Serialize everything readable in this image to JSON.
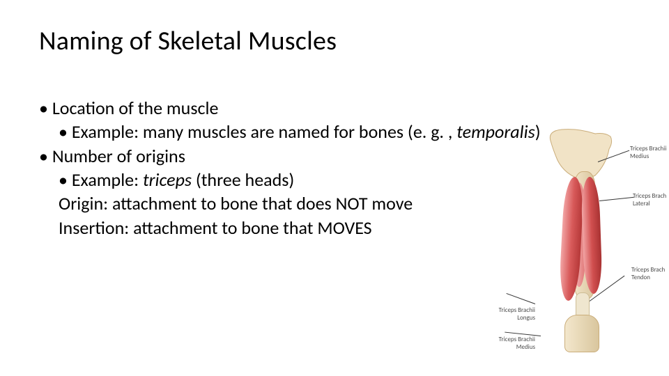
{
  "title": "Naming of Skeletal Muscles",
  "bullets": {
    "b1": "Location of the muscle",
    "b1a_pre": "Example: many muscles are named for bones (e. g. , ",
    "b1a_italic": "temporalis",
    "b1a_post": ")",
    "b2": "Number of origins",
    "b2a_pre": "Example: ",
    "b2a_italic": "triceps",
    "b2a_post": " (three heads)",
    "b2b": "Origin: attachment to bone that does NOT move",
    "b2c": "Insertion: attachment to bone that MOVES"
  },
  "diagram": {
    "labels": {
      "medius_top": "Triceps Brachii\nMedius",
      "lateral": "Triceps Brach\nLateral",
      "tendon": "Triceps Brach\nTendon",
      "longus": "Triceps Brachii\nLongus",
      "medius_bot": "Triceps Brachii\nMedius"
    },
    "colors": {
      "bone_fill": "#f1e3c6",
      "bone_stroke": "#caad7a",
      "muscle_light": "#f2a5a5",
      "muscle_mid": "#d85a5a",
      "muscle_dark": "#a83232",
      "tendon": "#efe6cf",
      "label_text": "#4a4a4a",
      "lead": "#333333"
    }
  }
}
